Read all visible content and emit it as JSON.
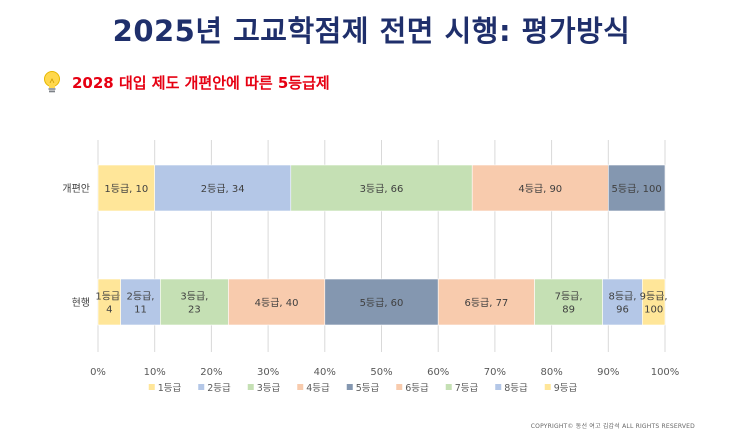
{
  "title": "2025년 고교학점제 전면 시행: 평가방식",
  "subtitle": "2028 대입 제도 개편안에 따른 5등급제",
  "subtitle_icon": "lightbulb-icon",
  "copyright": "COPYRIGHT© 동선 여고 김갑석  ALL RIGHTS RESERVED",
  "colors": {
    "title": "#1f2f6b",
    "subtitle": "#e60012"
  },
  "chart_data": {
    "type": "bar",
    "orientation": "horizontal",
    "stacked": true,
    "categories": [
      "개편안",
      "현행"
    ],
    "xlim": [
      0,
      100
    ],
    "xticks": [
      "0%",
      "10%",
      "20%",
      "30%",
      "40%",
      "50%",
      "60%",
      "70%",
      "80%",
      "90%",
      "100%"
    ],
    "grid": true,
    "legend_position": "bottom",
    "legend": [
      {
        "label": "1등급",
        "color": "#ffe699"
      },
      {
        "label": "2등급",
        "color": "#b4c7e7"
      },
      {
        "label": "3등급",
        "color": "#c5e0b4"
      },
      {
        "label": "4등급",
        "color": "#f8cbad"
      },
      {
        "label": "5등급",
        "color": "#8497b0"
      },
      {
        "label": "6등급",
        "color": "#f8cbad"
      },
      {
        "label": "7등급",
        "color": "#c5e0b4"
      },
      {
        "label": "8등급",
        "color": "#b4c7e7"
      },
      {
        "label": "9등급",
        "color": "#ffe699"
      }
    ],
    "bars": [
      {
        "category": "개편안",
        "segments": [
          {
            "start": 0,
            "end": 10,
            "color": "#ffe699",
            "label": [
              "1등급, 10"
            ]
          },
          {
            "start": 10,
            "end": 34,
            "color": "#b4c7e7",
            "label": [
              "2등급, 34"
            ]
          },
          {
            "start": 34,
            "end": 66,
            "color": "#c5e0b4",
            "label": [
              "3등급, 66"
            ]
          },
          {
            "start": 66,
            "end": 90,
            "color": "#f8cbad",
            "label": [
              "4등급, 90"
            ]
          },
          {
            "start": 90,
            "end": 100,
            "color": "#8497b0",
            "label": [
              "5등급, 100"
            ]
          }
        ]
      },
      {
        "category": "현행",
        "segments": [
          {
            "start": 0,
            "end": 4,
            "color": "#ffe699",
            "label": [
              "1등급,",
              "4"
            ]
          },
          {
            "start": 4,
            "end": 11,
            "color": "#b4c7e7",
            "label": [
              "2등급,",
              "11"
            ]
          },
          {
            "start": 11,
            "end": 23,
            "color": "#c5e0b4",
            "label": [
              "3등급,",
              "23"
            ]
          },
          {
            "start": 23,
            "end": 40,
            "color": "#f8cbad",
            "label": [
              "4등급, 40"
            ]
          },
          {
            "start": 40,
            "end": 60,
            "color": "#8497b0",
            "label": [
              "5등급, 60"
            ]
          },
          {
            "start": 60,
            "end": 77,
            "color": "#f8cbad",
            "label": [
              "6등급, 77"
            ]
          },
          {
            "start": 77,
            "end": 89,
            "color": "#c5e0b4",
            "label": [
              "7등급,",
              "89"
            ]
          },
          {
            "start": 89,
            "end": 96,
            "color": "#b4c7e7",
            "label": [
              "8등급,",
              "96"
            ]
          },
          {
            "start": 96,
            "end": 100,
            "color": "#ffe699",
            "label": [
              "9등급,",
              "100"
            ]
          }
        ]
      }
    ]
  }
}
